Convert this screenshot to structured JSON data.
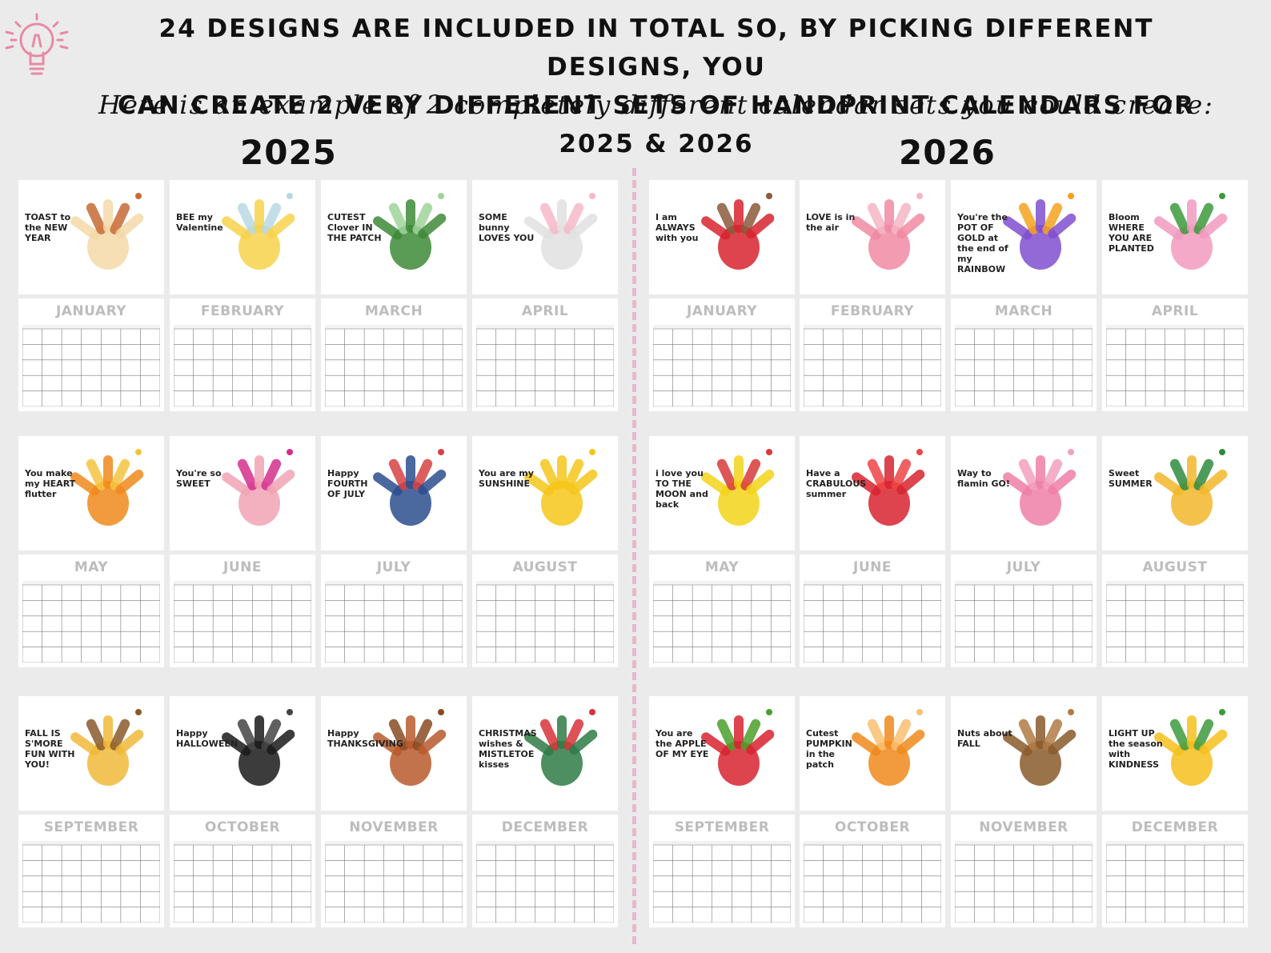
{
  "headline": {
    "line1": "24 designs are included in total so, by picking different designs, you",
    "line2": "can create 2 very different sets of handprint calendars for 2025 & 2026"
  },
  "subhead": "Here is an example of 2 completely different calendar sets you could create:",
  "colors": {
    "background": "#ebebeb",
    "divider": "#e7b8cf",
    "bulb": "#e88aa6",
    "month_title": "#bdbdbd"
  },
  "sets": [
    {
      "year": "2025",
      "months": [
        {
          "name": "JANUARY",
          "text": "TOAST to the NEW YEAR",
          "colors": [
            "#f4d8a8",
            "#c76a35"
          ]
        },
        {
          "name": "FEBRUARY",
          "text": "BEE my Valentine",
          "colors": [
            "#f7d24a",
            "#b8d8e2"
          ]
        },
        {
          "name": "MARCH",
          "text": "CUTEST Clover IN THE PATCH",
          "colors": [
            "#3d8a37",
            "#9fd39a"
          ]
        },
        {
          "name": "APRIL",
          "text": "SOME bunny LOVES YOU",
          "colors": [
            "#e0e0e0",
            "#f7b8c8"
          ]
        },
        {
          "name": "MAY",
          "text": "You make my HEART flutter",
          "colors": [
            "#f08a1c",
            "#f5c440"
          ]
        },
        {
          "name": "JUNE",
          "text": "You're so SWEET",
          "colors": [
            "#f1a3b5",
            "#d42f8c"
          ]
        },
        {
          "name": "JULY",
          "text": "Happy FOURTH OF JULY",
          "colors": [
            "#2c4d8e",
            "#d64242"
          ]
        },
        {
          "name": "AUGUST",
          "text": "You are my SUNSHINE",
          "colors": [
            "#f6c619",
            "#f6c619"
          ]
        },
        {
          "name": "SEPTEMBER",
          "text": "FALL IS S'MORE FUN WITH YOU!",
          "colors": [
            "#f0b838",
            "#8a5a2b"
          ]
        },
        {
          "name": "OCTOBER",
          "text": "Happy HALLOWEEN",
          "colors": [
            "#1a1a1a",
            "#444444"
          ]
        },
        {
          "name": "NOVEMBER",
          "text": "Happy THANKSGIVING",
          "colors": [
            "#b85a2d",
            "#8a4b23"
          ]
        },
        {
          "name": "DECEMBER",
          "text": "CHRISTMAS wishes & MISTLETOE kisses",
          "colors": [
            "#2f7b45",
            "#d7323a"
          ]
        }
      ]
    },
    {
      "year": "2026",
      "months": [
        {
          "name": "JANUARY",
          "text": "I am ALWAYS with you",
          "colors": [
            "#d7232f",
            "#8b5a3c"
          ]
        },
        {
          "name": "FEBRUARY",
          "text": "LOVE is in the air",
          "colors": [
            "#f08aa3",
            "#f4b5c4"
          ]
        },
        {
          "name": "MARCH",
          "text": "You're the POT OF GOLD at the end of my RAINBOW",
          "colors": [
            "#7f4fd0",
            "#f4a21e"
          ]
        },
        {
          "name": "APRIL",
          "text": "Bloom WHERE YOU ARE PLANTED",
          "colors": [
            "#f29ac0",
            "#3c9a3c"
          ]
        },
        {
          "name": "MAY",
          "text": "i love you TO THE MOON and back",
          "colors": [
            "#f3d419",
            "#d83a3a"
          ]
        },
        {
          "name": "JUNE",
          "text": "Have a CRABULOUS summer",
          "colors": [
            "#d7232f",
            "#ee4444"
          ]
        },
        {
          "name": "JULY",
          "text": "Way to flamin GO!",
          "colors": [
            "#ef7fa8",
            "#f2a0bc"
          ]
        },
        {
          "name": "AUGUST",
          "text": "Sweet SUMMER",
          "colors": [
            "#f2b72a",
            "#2e8b3e"
          ]
        },
        {
          "name": "SEPTEMBER",
          "text": "You are the APPLE OF MY EYE",
          "colors": [
            "#d7232f",
            "#4aa02c"
          ]
        },
        {
          "name": "OCTOBER",
          "text": "Cutest PUMPKIN in the patch",
          "colors": [
            "#f08a1c",
            "#f8c070"
          ]
        },
        {
          "name": "NOVEMBER",
          "text": "Nuts about FALL",
          "colors": [
            "#8a5a2b",
            "#b07a45"
          ]
        },
        {
          "name": "DECEMBER",
          "text": "LIGHT UP the season with KINDNESS",
          "colors": [
            "#f4c01c",
            "#3d9a3d"
          ]
        }
      ]
    }
  ]
}
